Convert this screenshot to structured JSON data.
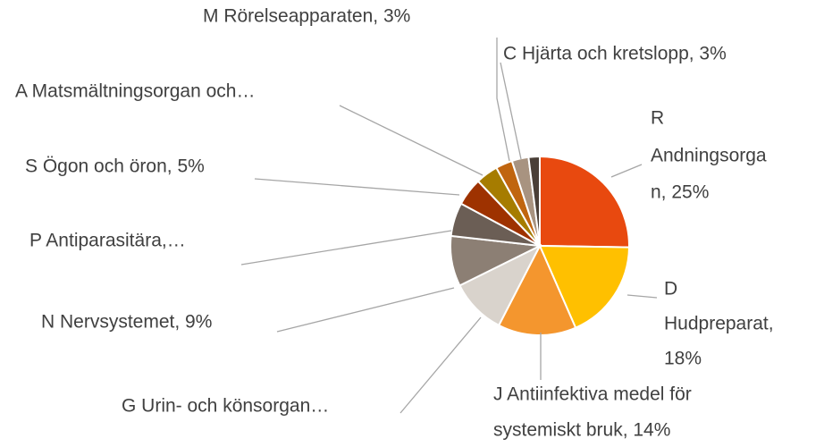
{
  "chart_data": {
    "type": "pie",
    "categories": [
      [
        "R",
        "Andningsorga",
        "n, 25%"
      ],
      [
        "D",
        "Hudpreparat,",
        "18%"
      ],
      [
        "J Antiinfektiva medel för",
        "systemiskt bruk, 14%"
      ],
      [
        "G Urin- och könsorgan…"
      ],
      [
        "N Nervsystemet, 9%"
      ],
      [
        "P Antiparasitära,…"
      ],
      [
        "S Ögon och öron, 5%"
      ],
      [
        "A Matsmältningsorgan och…"
      ],
      [
        "M Rörelseapparaten, 3%"
      ],
      [
        "C Hjärta och kretslopp, 3%"
      ],
      null
    ],
    "values": [
      25,
      18,
      14,
      10,
      9,
      6,
      5,
      4,
      3,
      3,
      2
    ],
    "colors": [
      "#e8490f",
      "#ffc000",
      "#f4962e",
      "#d9d3cc",
      "#8c7f74",
      "#6b5e55",
      "#9e3200",
      "#a67c00",
      "#c0650f",
      "#a89380",
      "#4a3f37"
    ]
  }
}
